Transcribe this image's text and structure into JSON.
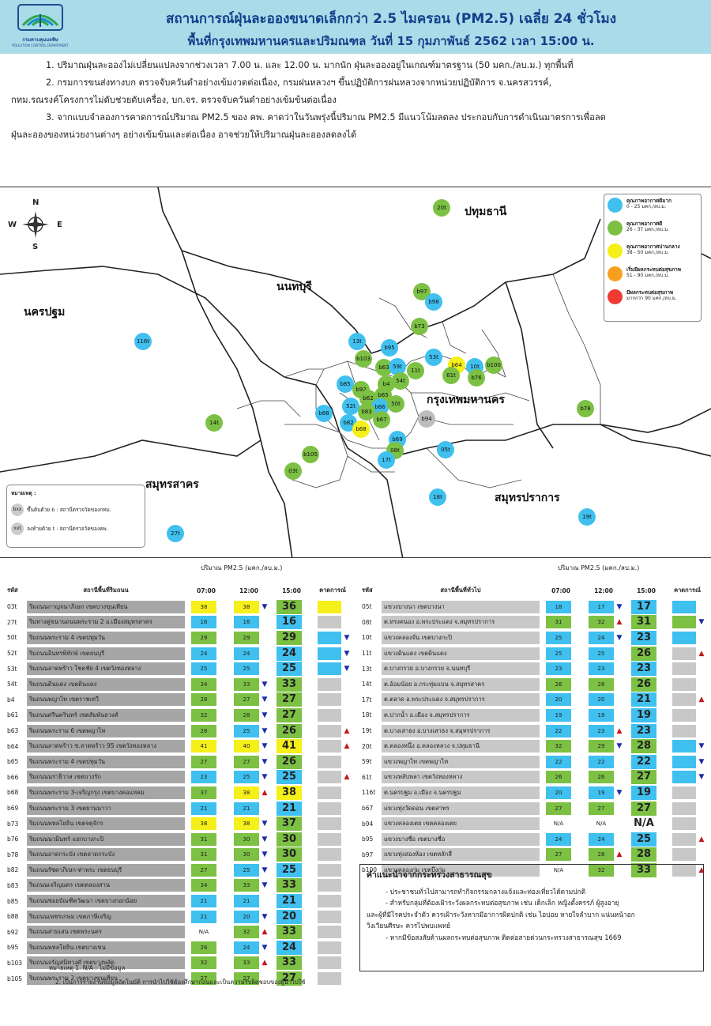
{
  "header": {
    "agency_name": "กรมควบคุมมลพิษ",
    "agency_en": "POLLUTION CONTROL DEPARTMENT",
    "title_line1": "สถานการณ์ฝุ่นละอองขนาดเล็กกว่า 2.5 ไมครอน (PM2.5) เฉลี่ย 24 ชั่วโมง",
    "title_line2": "พื้นที่กรุงเทพมหานครและปริมณฑล วันที่ 15 กุมภาพันธ์ 2562 เวลา 15:00 น."
  },
  "notes": [
    "1. ปริมาณฝุ่นละอองไม่เปลี่ยนแปลงจากช่วงเวลา 7.00 น. และ 12.00 น. มากนัก ฝุ่นละอองอยู่ในเกณฑ์มาตรฐาน (50 มคก./ลบ.ม.) ทุกพื้นที่",
    "2. กรมการขนส่งทางบก ตรวจจับควันดำอย่างเข้มงวดต่อเนื่อง, กรมฝนหลวงฯ ขึ้นปฏิบัติการฝนหลวงจากหน่วยปฏิบัติการ จ.นครสวรรค์,",
    "กทม.รณรงค์โครงการไม่ดับช่วยดับเครื่อง, บก.จร. ตรวจจับควันดำอย่างเข้มข้นต่อเนื่อง",
    "3. จากแบบจำลองการคาดการณ์ปริมาณ PM2.5 ของ คพ. คาดว่าในวันพรุ่งนี้ปริมาณ PM2.5 มีแนวโน้มลดลง ประกอบกับการดำเนินมาตรการเพื่อลด",
    "ฝุ่นละอองของหน่วยงานต่างๆ อย่างเข้มข้นและต่อเนื่อง อาจช่วยให้ปริมาณฝุ่นละอองลดลงได้"
  ],
  "map": {
    "compass": {
      "n": "N",
      "s": "S",
      "e": "E",
      "w": "W"
    },
    "provinces": [
      {
        "id": "pathum",
        "label": "ปทุมธานี"
      },
      {
        "id": "nonthaburi",
        "label": "นนทบุรี"
      },
      {
        "id": "nakhonpathom",
        "label": "นครปฐม"
      },
      {
        "id": "bangkok",
        "label": "กรุงเทพมหานคร"
      },
      {
        "id": "samutsakhon",
        "label": "สมุทรสาคร"
      },
      {
        "id": "samutprakan",
        "label": "สมุทรปราการ"
      }
    ],
    "legend": [
      {
        "title": "คุณภาพอากาศดีมาก",
        "range": "0 - 25 มคก./ลบ.ม.",
        "color": "#3fc0ef"
      },
      {
        "title": "คุณภาพอากาศดี",
        "range": "26 - 37 มคก./ลบ.ม.",
        "color": "#7cc044"
      },
      {
        "title": "คุณภาพอากาศปานกลาง",
        "range": "38 - 50 มคก./ลบ.ม.",
        "color": "#f5ef1a"
      },
      {
        "title": "เริ่มมีผลกระทบต่อสุขภาพ",
        "range": "51 - 90 มคก./ลบ.ม.",
        "color": "#f6a01e"
      },
      {
        "title": "มีผลกระทบต่อสุขภาพ",
        "range": "มากกว่า 90 มคก./ลบ.ม.",
        "color": "#ee3b33"
      }
    ],
    "note": {
      "title": "หมายเหตุ :",
      "b_sym": "bxx",
      "b_text": "ขึ้นต้นด้วย b : สถานีตรวจวัดของกทม.",
      "t_sym": "xxt",
      "t_text": "ลงท้ายด้วย t : สถานีตรวจวัดของคพ."
    },
    "stations": [
      {
        "id": "20t",
        "level": "good"
      },
      {
        "id": "b97",
        "level": "good"
      },
      {
        "id": "b98",
        "level": "verygood"
      },
      {
        "id": "b73",
        "level": "good"
      },
      {
        "id": "116t",
        "level": "verygood"
      },
      {
        "id": "13t",
        "level": "verygood"
      },
      {
        "id": "b95",
        "level": "verygood"
      },
      {
        "id": "b103",
        "level": "good"
      },
      {
        "id": "53t",
        "level": "verygood"
      },
      {
        "id": "b64",
        "level": "moderate"
      },
      {
        "id": "b63",
        "level": "good"
      },
      {
        "id": "59t",
        "level": "verygood"
      },
      {
        "id": "11t",
        "level": "good"
      },
      {
        "id": "10t",
        "level": "verygood"
      },
      {
        "id": "b100",
        "level": "good"
      },
      {
        "id": "61t",
        "level": "good"
      },
      {
        "id": "b76",
        "level": "good"
      },
      {
        "id": "b85",
        "level": "verygood"
      },
      {
        "id": "b4",
        "level": "good"
      },
      {
        "id": "54t",
        "level": "good"
      },
      {
        "id": "b92",
        "level": "good"
      },
      {
        "id": "b65",
        "level": "good"
      },
      {
        "id": "b62",
        "level": "good"
      },
      {
        "id": "52t",
        "level": "verygood"
      },
      {
        "id": "b66",
        "level": "verygood"
      },
      {
        "id": "50t",
        "level": "good"
      },
      {
        "id": "b83",
        "level": "good"
      },
      {
        "id": "b88",
        "level": "verygood"
      },
      {
        "id": "b67",
        "level": "good"
      },
      {
        "id": "b82",
        "level": "verygood"
      },
      {
        "id": "b68",
        "level": "moderate"
      },
      {
        "id": "b94",
        "level": "na"
      },
      {
        "id": "b78",
        "level": "good"
      },
      {
        "id": "14t",
        "level": "good"
      },
      {
        "id": "b69",
        "level": "verygood"
      },
      {
        "id": "08t",
        "level": "good"
      },
      {
        "id": "05t",
        "level": "verygood"
      },
      {
        "id": "b105",
        "level": "good"
      },
      {
        "id": "17t",
        "level": "verygood"
      },
      {
        "id": "03t",
        "level": "good"
      },
      {
        "id": "18t",
        "level": "verygood"
      },
      {
        "id": "19t",
        "level": "verygood"
      },
      {
        "id": "27t",
        "level": "verygood"
      }
    ]
  },
  "tables": {
    "unit_label": "ปริมาณ PM2.5 (มคก./ลบ.ม.)",
    "left": {
      "headers": {
        "code": "รหัส",
        "name": "สถานีพื้นที่ริมถนน",
        "t1": "07:00",
        "t2": "12:00",
        "t3": "15:00",
        "fc": "คาดการณ์"
      },
      "rows": [
        {
          "code": "03t",
          "name": "ริมถนนกาญจนาภิเษก เขตบางขุนเทียน",
          "v1": "38",
          "v2": "38",
          "v3": "36",
          "arr": "down",
          "fc": "moderate",
          "fcarr": ""
        },
        {
          "code": "27t",
          "name": "ริมทางคู่ขนานถนนพระราม 2 อ.เมืองสมุทรสาคร",
          "v1": "16",
          "v2": "16",
          "v3": "16",
          "arr": "",
          "fc": "gray",
          "fcarr": ""
        },
        {
          "code": "50t",
          "name": "ริมถนนพระราม 4 เขตปทุมวัน",
          "v1": "29",
          "v2": "29",
          "v3": "29",
          "arr": "",
          "fc": "verygood",
          "fcarr": "down"
        },
        {
          "code": "52t",
          "name": "ริมถนนอินทรพิทักษ์ เขตธนบุรี",
          "v1": "24",
          "v2": "24",
          "v3": "24",
          "arr": "",
          "fc": "verygood",
          "fcarr": "down"
        },
        {
          "code": "53t",
          "name": "ริมถนนลาดพร้าว โชคชัย 4 เขตวังทองหลาง",
          "v1": "25",
          "v2": "25",
          "v3": "25",
          "arr": "",
          "fc": "verygood",
          "fcarr": "down"
        },
        {
          "code": "54t",
          "name": "ริมถนนดินแดง เขตดินแดง",
          "v1": "34",
          "v2": "33",
          "v3": "33",
          "arr": "down",
          "fc": "gray",
          "fcarr": ""
        },
        {
          "code": "b4",
          "name": "ริมถนนพญาไท เขตราชเทวี",
          "v1": "28",
          "v2": "27",
          "v3": "27",
          "arr": "down",
          "fc": "gray",
          "fcarr": ""
        },
        {
          "code": "b61",
          "name": "ริมถนนศรีนครินทร์ เขตสัมพันธวงศ์",
          "v1": "32",
          "v2": "28",
          "v3": "27",
          "arr": "down",
          "fc": "gray",
          "fcarr": ""
        },
        {
          "code": "b63",
          "name": "ริมถนนพระราม 6 เขตพญาไท",
          "v1": "28",
          "v2": "25",
          "v3": "26",
          "arr": "down",
          "fc": "gray",
          "fcarr": "up"
        },
        {
          "code": "b64",
          "name": "ริมถนนลาดพร้าว ซ.ลาดพร้าว 95 เขตวังทองหลาง",
          "v1": "41",
          "v2": "40",
          "v3": "41",
          "arr": "down",
          "fc": "gray",
          "fcarr": "up"
        },
        {
          "code": "b65",
          "name": "ริมถนนพระราม 4 เขตปทุมวัน",
          "v1": "27",
          "v2": "27",
          "v3": "26",
          "arr": "down",
          "fc": "gray",
          "fcarr": ""
        },
        {
          "code": "b66",
          "name": "ริมถนนนราธิวาส เขตบางรัก",
          "v1": "23",
          "v2": "25",
          "v3": "25",
          "arr": "down",
          "fc": "gray",
          "fcarr": "up"
        },
        {
          "code": "b68",
          "name": "ริมถนนพระราม 3-เจริญกรุง เขตบางคอแหลม",
          "v1": "37",
          "v2": "38",
          "v3": "38",
          "arr": "up",
          "fc": "gray",
          "fcarr": ""
        },
        {
          "code": "b69",
          "name": "ริมถนนพระราม 3 เขตยานนาวา",
          "v1": "21",
          "v2": "21",
          "v3": "21",
          "arr": "",
          "fc": "gray",
          "fcarr": ""
        },
        {
          "code": "b73",
          "name": "ริมถนนพหลโยธิน เขตจตุจักร",
          "v1": "38",
          "v2": "38",
          "v3": "37",
          "arr": "down",
          "fc": "gray",
          "fcarr": ""
        },
        {
          "code": "b76",
          "name": "ริมถนนนวมินทร์ แยกบางกะปิ",
          "v1": "31",
          "v2": "30",
          "v3": "30",
          "arr": "down",
          "fc": "gray",
          "fcarr": ""
        },
        {
          "code": "b78",
          "name": "ริมถนนลาดกระบัง เขตลาดกระบัง",
          "v1": "31",
          "v2": "30",
          "v3": "30",
          "arr": "down",
          "fc": "gray",
          "fcarr": ""
        },
        {
          "code": "b82",
          "name": "ริมถนนรัชดาภิเษก-ท่าพระ เขตธนบุรี",
          "v1": "27",
          "v2": "25",
          "v3": "25",
          "arr": "down",
          "fc": "gray",
          "fcarr": ""
        },
        {
          "code": "b83",
          "name": "ริมถนนเจริญนคร เขตคลองสาน",
          "v1": "34",
          "v2": "33",
          "v3": "33",
          "arr": "down",
          "fc": "gray",
          "fcarr": ""
        },
        {
          "code": "b85",
          "name": "ริมถนนซอยบัณฑิตวัฒนา เขตบางกอกน้อย",
          "v1": "21",
          "v2": "21",
          "v3": "21",
          "arr": "",
          "fc": "gray",
          "fcarr": ""
        },
        {
          "code": "b88",
          "name": "ริมถนนเพชรเกษม เขตภาษีเจริญ",
          "v1": "21",
          "v2": "20",
          "v3": "20",
          "arr": "down",
          "fc": "gray",
          "fcarr": ""
        },
        {
          "code": "b92",
          "name": "ริมถนนสามเสน เขตพระนคร",
          "v1": "N/A",
          "v2": "32",
          "v3": "33",
          "arr": "up",
          "fc": "gray",
          "fcarr": ""
        },
        {
          "code": "b95",
          "name": "ริมถนนพหลโยธิน เขตบางเขน",
          "v1": "26",
          "v2": "24",
          "v3": "24",
          "arr": "down",
          "fc": "gray",
          "fcarr": ""
        },
        {
          "code": "b103",
          "name": "ริมถนนจรัญสนิทวงศ์ เขตบางพลัด",
          "v1": "32",
          "v2": "33",
          "v3": "33",
          "arr": "up",
          "fc": "gray",
          "fcarr": ""
        },
        {
          "code": "b105",
          "name": "ริมถนนพระราม 2 เขตบางขุนเทียน",
          "v1": "27",
          "v2": "27",
          "v3": "27",
          "arr": "",
          "fc": "gray",
          "fcarr": ""
        }
      ]
    },
    "right": {
      "headers": {
        "code": "รหัส",
        "name": "สถานีพื้นที่ทั่วไป",
        "t1": "07:00",
        "t2": "12:00",
        "t3": "15:00",
        "fc": "คาดการณ์"
      },
      "rows": [
        {
          "code": "05t",
          "name": "แขวงบางนา เขตบางนา",
          "v1": "18",
          "v2": "17",
          "v3": "17",
          "arr": "down",
          "fc": "verygood",
          "fcarr": ""
        },
        {
          "code": "08t",
          "name": "ต.ทรงคนอง อ.พระประแดง จ.สมุทรปราการ",
          "v1": "31",
          "v2": "32",
          "v3": "31",
          "arr": "up",
          "fc": "good",
          "fcarr": "down"
        },
        {
          "code": "10t",
          "name": "แขวงคลองจั่น เขตบางกะปิ",
          "v1": "25",
          "v2": "24",
          "v3": "23",
          "arr": "down",
          "fc": "verygood",
          "fcarr": ""
        },
        {
          "code": "11t",
          "name": "แขวงดินแดง เขตดินแดง",
          "v1": "25",
          "v2": "25",
          "v3": "26",
          "arr": "",
          "fc": "gray",
          "fcarr": "up"
        },
        {
          "code": "13t",
          "name": "ต.บางกรวย อ.บางกรวย จ.นนทบุรี",
          "v1": "23",
          "v2": "23",
          "v3": "23",
          "arr": "",
          "fc": "gray",
          "fcarr": ""
        },
        {
          "code": "14t",
          "name": "ต.อ้อมน้อย อ.กระทุ่มแบน จ.สมุทรสาคร",
          "v1": "26",
          "v2": "26",
          "v3": "26",
          "arr": "",
          "fc": "gray",
          "fcarr": ""
        },
        {
          "code": "17t",
          "name": "ต.ตลาด อ.พระประแดง จ.สมุทรปราการ",
          "v1": "20",
          "v2": "20",
          "v3": "21",
          "arr": "",
          "fc": "gray",
          "fcarr": "up"
        },
        {
          "code": "18t",
          "name": "ต.ปากน้ำ อ.เมือง จ.สมุทรปราการ",
          "v1": "19",
          "v2": "19",
          "v3": "19",
          "arr": "",
          "fc": "gray",
          "fcarr": ""
        },
        {
          "code": "19t",
          "name": "ต.บางเสาธง อ.บางเสาธง จ.สมุทรปราการ",
          "v1": "22",
          "v2": "23",
          "v3": "23",
          "arr": "up",
          "fc": "gray",
          "fcarr": ""
        },
        {
          "code": "20t",
          "name": "ต.คลองหนึ่ง อ.คลองหลวง จ.ปทุมธานี",
          "v1": "32",
          "v2": "29",
          "v3": "28",
          "arr": "down",
          "fc": "verygood",
          "fcarr": "down"
        },
        {
          "code": "59t",
          "name": "แขวงพญาไท เขตพญาไท",
          "v1": "22",
          "v2": "22",
          "v3": "22",
          "arr": "",
          "fc": "verygood",
          "fcarr": "down"
        },
        {
          "code": "61t",
          "name": "แขวงพลับพลา เขตวังทองหลาง",
          "v1": "26",
          "v2": "26",
          "v3": "27",
          "arr": "",
          "fc": "verygood",
          "fcarr": "down"
        },
        {
          "code": "116t",
          "name": "ต.นครปฐม อ.เมือง จ.นครปฐม",
          "v1": "20",
          "v2": "19",
          "v3": "19",
          "arr": "down",
          "fc": "gray",
          "fcarr": ""
        },
        {
          "code": "b67",
          "name": "แขวงทุ่งวัดดอน เขตสาทร",
          "v1": "27",
          "v2": "27",
          "v3": "27",
          "arr": "",
          "fc": "gray",
          "fcarr": ""
        },
        {
          "code": "b94",
          "name": "แขวงคลองเตย เขตคลองเตย",
          "v1": "N/A",
          "v2": "N/A",
          "v3": "N/A",
          "arr": "",
          "fc": "gray",
          "fcarr": ""
        },
        {
          "code": "b95",
          "name": "แขวงบางซื่อ เขตบางซื่อ",
          "v1": "24",
          "v2": "24",
          "v3": "25",
          "arr": "",
          "fc": "gray",
          "fcarr": "up"
        },
        {
          "code": "b97",
          "name": "แขวงทุ่งสองห้อง เขตหลักสี่",
          "v1": "27",
          "v2": "28",
          "v3": "28",
          "arr": "up",
          "fc": "gray",
          "fcarr": ""
        },
        {
          "code": "b100",
          "name": "แขวงคลองกุ่ม เขตบึงกุ่ม",
          "v1": "N/A",
          "v2": "32",
          "v3": "33",
          "arr": "",
          "fc": "gray",
          "fcarr": "up"
        }
      ]
    }
  },
  "advice": {
    "title": "คำแนะนำจากกระทรวงสาธารณสุข",
    "items": [
      "- ประชาชนทั่วไปสามารถทำกิจกรรมกลางแจ้งและท่องเที่ยวได้ตามปกติ",
      "- สำหรับกลุ่มที่ต้องเฝ้าระวังผลกระทบต่อสุขภาพ เช่น เด็กเล็ก หญิงตั้งครรภ์ ผู้สูงอายุ",
      "และผู้ที่มีโรคประจำตัว ควรเฝ้าระวังหากมีอาการผิดปกติ เช่น ไอบ่อย หายใจลำบาก แน่นหน้าอก",
      "วิงเวียนศีรษะ ควรไปพบแพทย์",
      "- หากมีข้อสงสัยด้านผลกระทบต่อสุขภาพ ติดต่อสายด่วนกระทรวงสาธารณสุข 1669"
    ]
  },
  "footnotes": [
    "หมายเหตุ 1. N/A : ไม่มีข้อมูล",
    "2. เป็นการรายงานข้อมูลอัตโนมัติ การนำไปใช้ต้องศึกษาก่อนและเป็นความรับผิดชอบของผู้นำไปใช้"
  ],
  "colors": {
    "verygood": "#3fc0ef",
    "good": "#7cc044",
    "moderate": "#f5ef1a",
    "na": "#bdbdbd",
    "gray": "#c8c8c8"
  }
}
